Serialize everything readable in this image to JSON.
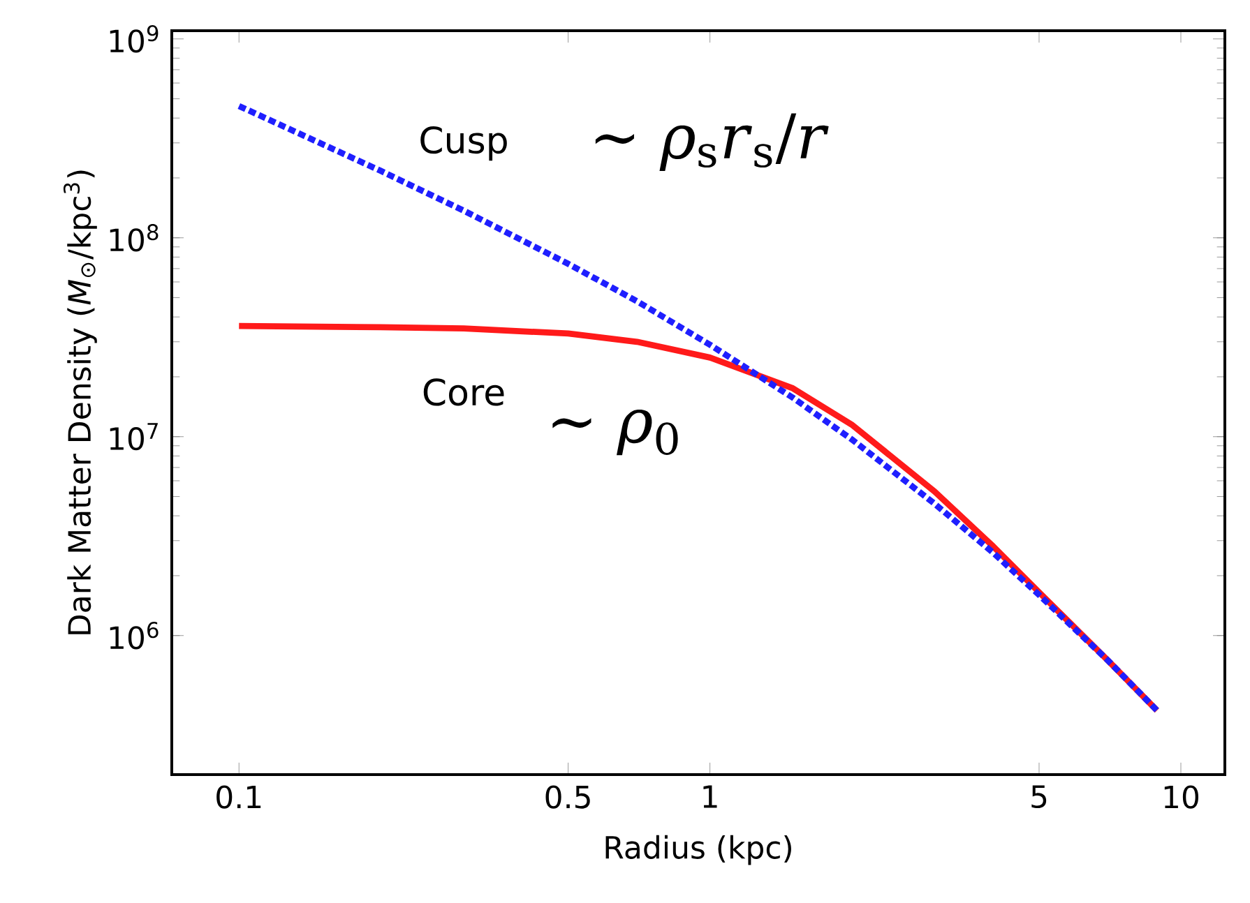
{
  "chart_data": {
    "type": "line",
    "xlabel": "Radius (kpc)",
    "ylabel": "Dark Matter Density (*M*$_{⊙}$/kpc$^{3}$)",
    "log": "xy",
    "grid": false,
    "legend": false,
    "marker": "none",
    "xlim": [
      0.072,
      12.4
    ],
    "ylim": [
      200000,
      1100000000
    ],
    "xticks": [
      0.1,
      0.5,
      1,
      5,
      10
    ],
    "yticks": [
      {
        "value": 1000000,
        "label": "10$^{6}$"
      },
      {
        "value": 10000000,
        "label": "10$^{7}$"
      },
      {
        "value": 100000000,
        "label": "10$^{8}$"
      },
      {
        "value": 1000000000,
        "label": "10$^{9}$"
      }
    ],
    "x": [
      0.1,
      0.2,
      0.3,
      0.5,
      0.7,
      1,
      1.5,
      2,
      3,
      4,
      5,
      7,
      8.9
    ],
    "series": [
      {
        "name": "Cusp",
        "color": "#1f1fff",
        "line_style": "dashed",
        "values": [
          460000000,
          217000000,
          137000000,
          74000000,
          48000000,
          29000000,
          15700000,
          9700000,
          4600000,
          2600000,
          1600000,
          750000,
          420000
        ]
      },
      {
        "name": "Core",
        "color": "#ff1a1a",
        "line_style": "solid",
        "values": [
          36000000,
          35500000,
          35000000,
          33000000,
          30000000,
          25000000,
          17500000,
          11500000,
          5300000,
          2800000,
          1650000,
          750000,
          420000
        ]
      }
    ],
    "annotations": [
      "∼ *ρ*$_{s}$*r*$_{s}$/*r*",
      "∼ *ρ*$_{0}$"
    ]
  }
}
